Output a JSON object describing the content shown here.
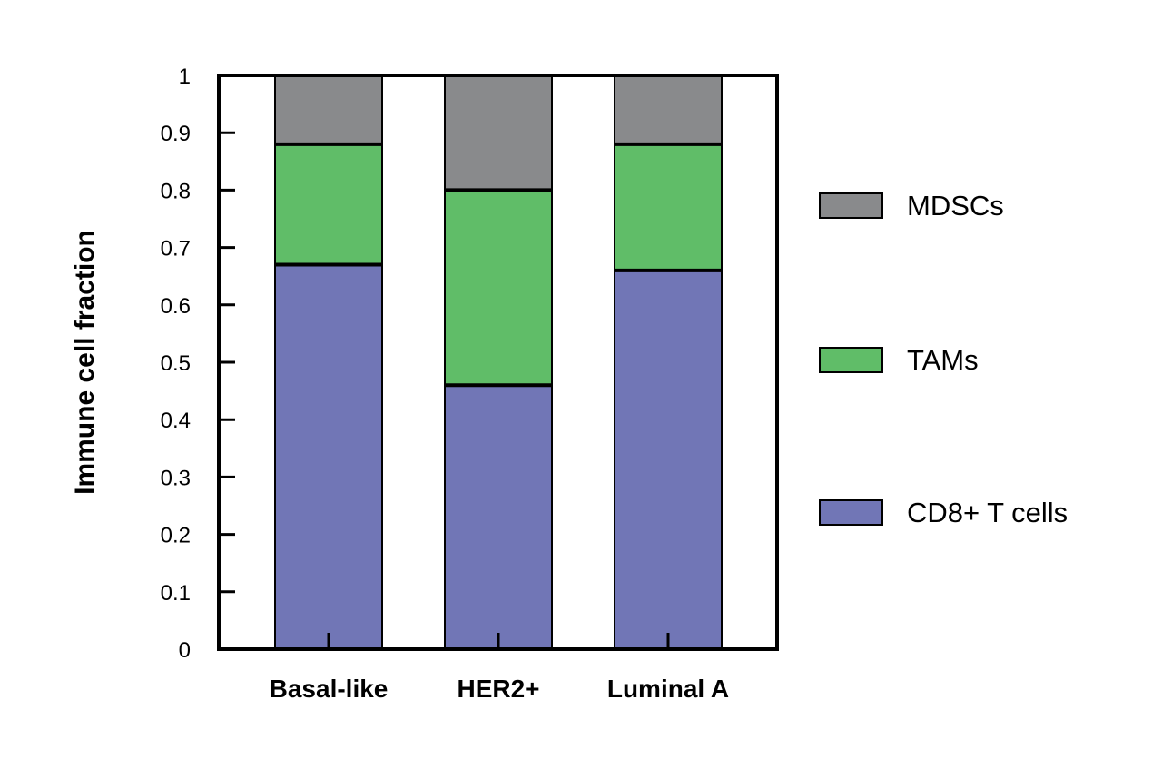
{
  "chart_data": {
    "type": "bar",
    "stacked": true,
    "categories": [
      "Basal-like",
      "HER2+",
      "Luminal A"
    ],
    "series": [
      {
        "name": "CD8+ T cells",
        "values": [
          0.67,
          0.46,
          0.66
        ],
        "color": "#7176b6"
      },
      {
        "name": "TAMs",
        "values": [
          0.21,
          0.34,
          0.22
        ],
        "color": "#60bd68"
      },
      {
        "name": "MDSCs",
        "values": [
          0.12,
          0.2,
          0.12
        ],
        "color": "#898a8c"
      }
    ],
    "legend_order": [
      "MDSCs",
      "TAMs",
      "CD8+ T cells"
    ],
    "legend_position": "right",
    "xlabel": "",
    "ylabel": "Immune cell fraction",
    "ylim": [
      0,
      1
    ],
    "yticks": [
      0,
      0.1,
      0.2,
      0.3,
      0.4,
      0.5,
      0.6,
      0.7,
      0.8,
      0.9,
      1
    ],
    "ytick_labels": [
      "0",
      "0.1",
      "0.2",
      "0.3",
      "0.4",
      "0.5",
      "0.6",
      "0.7",
      "0.8",
      "0.9",
      "1"
    ],
    "grid": false
  }
}
